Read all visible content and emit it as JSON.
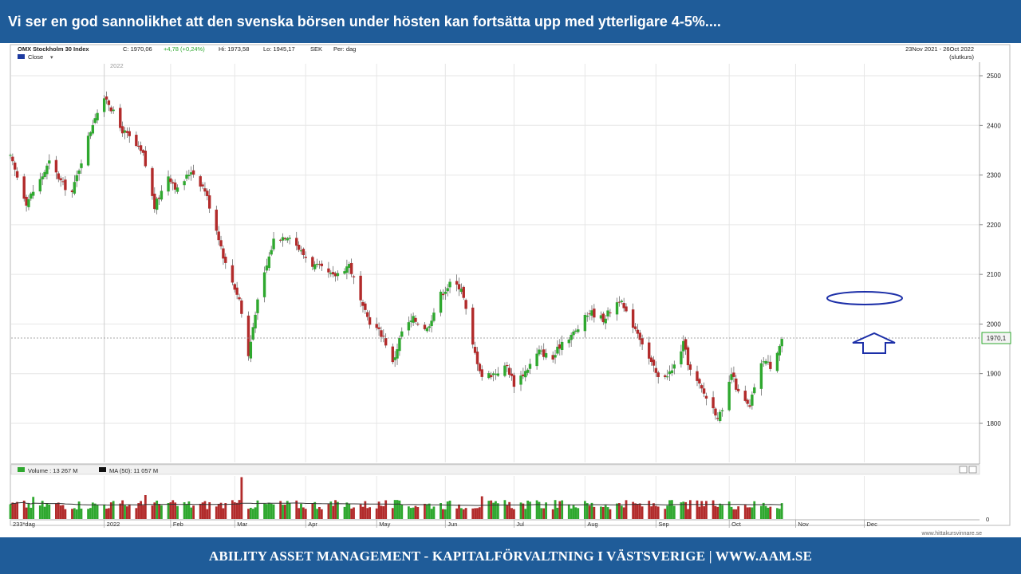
{
  "headline": "Vi ser en god sannolikhet att den svenska börsen under hösten kan fortsätta upp med ytterligare 4-5%....",
  "footer": "ABILITY ASSET MANAGEMENT -  KAPITALFÖRVALTNING I VÄSTSVERIGE   |   WWW.AAM.SE",
  "chart_header": {
    "name": "OMX Stockholm 30 Index",
    "close_label": "C: 1970,06",
    "change": "+4,78 (+0,24%)",
    "high_label": "Hi: 1973,58",
    "low_label": "Lo: 1945,17",
    "currency": "SEK",
    "period": "Per: dag",
    "legend_close": "Close",
    "date_range": "23Nov 2021 - 26Oct 2022",
    "price_type": "(slutkurs)",
    "year_marker": "2022"
  },
  "volume_header": {
    "volume_label": "Volume : 13 267 M",
    "ma_label": "MA (50): 11 057 M"
  },
  "footer_labels": {
    "days": "233*dag",
    "source": "www.hittakursvinnare.se"
  },
  "price_badge": "1970,1",
  "colors": {
    "up": "#2fa82f",
    "down": "#b22b2b",
    "annotation": "#1c2fa8",
    "brand_blue": "#1f5c99"
  },
  "chart_data": {
    "type": "candlestick",
    "title": "OMX Stockholm 30 Index",
    "ylim": [
      1700,
      2520
    ],
    "y_ticks": [
      1800,
      1900,
      2000,
      2100,
      2200,
      2300,
      2400,
      2500
    ],
    "x_tick_labels": [
      "2022",
      "Feb",
      "Mar",
      "Apr",
      "May",
      "Jun",
      "Jul",
      "Aug",
      "Sep",
      "Oct",
      "Nov",
      "Dec"
    ],
    "last_close": 1970.06,
    "close_anchors": [
      {
        "date": "2021-11-23",
        "close": 2335
      },
      {
        "date": "2021-11-30",
        "close": 2245
      },
      {
        "date": "2021-12-06",
        "close": 2290
      },
      {
        "date": "2021-12-10",
        "close": 2325
      },
      {
        "date": "2021-12-16",
        "close": 2280
      },
      {
        "date": "2021-12-20",
        "close": 2265
      },
      {
        "date": "2021-12-24",
        "close": 2330
      },
      {
        "date": "2021-12-30",
        "close": 2420
      },
      {
        "date": "2022-01-04",
        "close": 2455
      },
      {
        "date": "2022-01-10",
        "close": 2395
      },
      {
        "date": "2022-01-14",
        "close": 2375
      },
      {
        "date": "2022-01-20",
        "close": 2340
      },
      {
        "date": "2022-01-25",
        "close": 2235
      },
      {
        "date": "2022-01-31",
        "close": 2300
      },
      {
        "date": "2022-02-04",
        "close": 2270
      },
      {
        "date": "2022-02-10",
        "close": 2310
      },
      {
        "date": "2022-02-16",
        "close": 2270
      },
      {
        "date": "2022-02-22",
        "close": 2175
      },
      {
        "date": "2022-02-25",
        "close": 2120
      },
      {
        "date": "2022-03-03",
        "close": 2050
      },
      {
        "date": "2022-03-07",
        "close": 1935
      },
      {
        "date": "2022-03-10",
        "close": 2025
      },
      {
        "date": "2022-03-14",
        "close": 2100
      },
      {
        "date": "2022-03-18",
        "close": 2170
      },
      {
        "date": "2022-03-25",
        "close": 2180
      },
      {
        "date": "2022-03-30",
        "close": 2145
      },
      {
        "date": "2022-04-04",
        "close": 2120
      },
      {
        "date": "2022-04-08",
        "close": 2110
      },
      {
        "date": "2022-04-13",
        "close": 2095
      },
      {
        "date": "2022-04-20",
        "close": 2120
      },
      {
        "date": "2022-04-26",
        "close": 2030
      },
      {
        "date": "2022-04-29",
        "close": 2005
      },
      {
        "date": "2022-05-05",
        "close": 1975
      },
      {
        "date": "2022-05-09",
        "close": 1920
      },
      {
        "date": "2022-05-13",
        "close": 1985
      },
      {
        "date": "2022-05-18",
        "close": 2010
      },
      {
        "date": "2022-05-24",
        "close": 1990
      },
      {
        "date": "2022-05-30",
        "close": 2060
      },
      {
        "date": "2022-06-03",
        "close": 2080
      },
      {
        "date": "2022-06-08",
        "close": 2075
      },
      {
        "date": "2022-06-13",
        "close": 1955
      },
      {
        "date": "2022-06-17",
        "close": 1895
      },
      {
        "date": "2022-06-22",
        "close": 1900
      },
      {
        "date": "2022-06-28",
        "close": 1915
      },
      {
        "date": "2022-07-01",
        "close": 1880
      },
      {
        "date": "2022-07-06",
        "close": 1905
      },
      {
        "date": "2022-07-12",
        "close": 1945
      },
      {
        "date": "2022-07-18",
        "close": 1930
      },
      {
        "date": "2022-07-22",
        "close": 1965
      },
      {
        "date": "2022-07-28",
        "close": 1985
      },
      {
        "date": "2022-08-03",
        "close": 2025
      },
      {
        "date": "2022-08-09",
        "close": 2010
      },
      {
        "date": "2022-08-16",
        "close": 2050
      },
      {
        "date": "2022-08-19",
        "close": 2020
      },
      {
        "date": "2022-08-24",
        "close": 1985
      },
      {
        "date": "2022-08-29",
        "close": 1930
      },
      {
        "date": "2022-09-02",
        "close": 1890
      },
      {
        "date": "2022-09-08",
        "close": 1905
      },
      {
        "date": "2022-09-13",
        "close": 1960
      },
      {
        "date": "2022-09-16",
        "close": 1905
      },
      {
        "date": "2022-09-22",
        "close": 1860
      },
      {
        "date": "2022-09-28",
        "close": 1815
      },
      {
        "date": "2022-09-30",
        "close": 1820
      },
      {
        "date": "2022-10-04",
        "close": 1900
      },
      {
        "date": "2022-10-07",
        "close": 1860
      },
      {
        "date": "2022-10-12",
        "close": 1830
      },
      {
        "date": "2022-10-14",
        "close": 1875
      },
      {
        "date": "2022-10-18",
        "close": 1930
      },
      {
        "date": "2022-10-21",
        "close": 1915
      },
      {
        "date": "2022-10-26",
        "close": 1970
      }
    ],
    "volume": {
      "unit": "M",
      "last": 13267,
      "ma50": 11057,
      "typical_range": [
        8000,
        16000
      ],
      "spikes": [
        {
          "date": "2022-03-04",
          "value": 35000
        },
        {
          "date": "2022-01-21",
          "value": 20000
        },
        {
          "date": "2022-06-17",
          "value": 19000
        },
        {
          "date": "2021-12-03",
          "value": 18500
        }
      ]
    },
    "annotations": [
      "target-ellipse",
      "up-arrow",
      "last-price-line"
    ]
  }
}
